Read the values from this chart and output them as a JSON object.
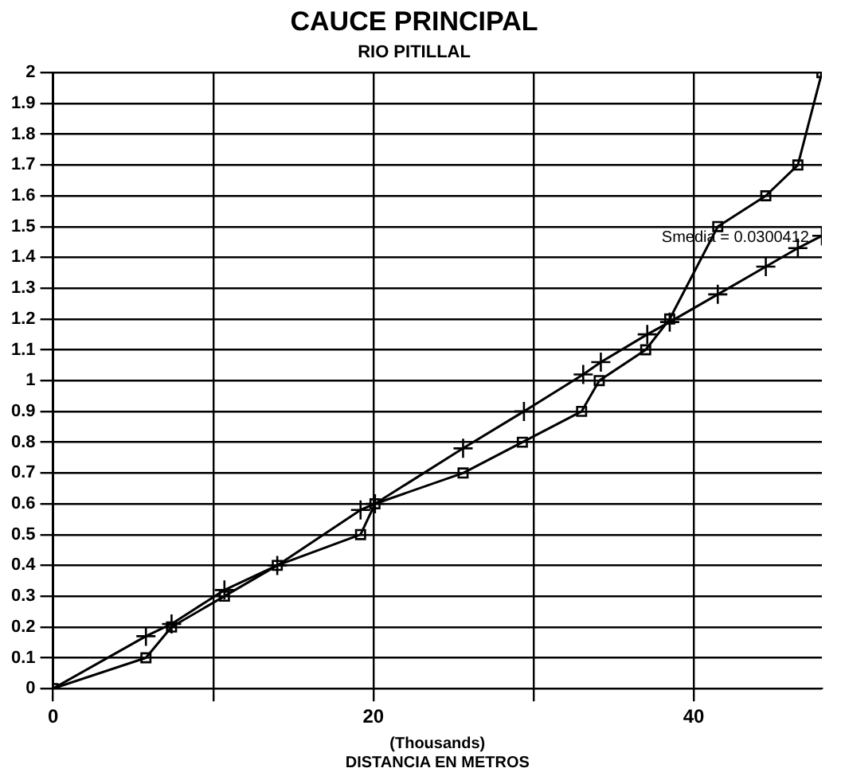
{
  "chart_data": {
    "type": "line",
    "title": "CAUCE PRINCIPAL",
    "subtitle": "RIO PITILLAL",
    "xlabel": "(Thousands)\nDISTANCIA EN METROS",
    "xlim": [
      0,
      48
    ],
    "xticks": [
      0,
      {
        "value": 10,
        "label": null
      },
      20,
      {
        "value": 30,
        "label": null
      },
      40
    ],
    "ylim": [
      0,
      2
    ],
    "yticks": [
      0,
      0.1,
      0.2,
      0.3,
      0.4,
      0.5,
      0.6,
      0.7,
      0.8,
      0.9,
      1,
      1.1,
      1.2,
      1.3,
      1.4,
      1.5,
      1.6,
      1.7,
      1.8,
      1.9,
      2
    ],
    "grid": true,
    "legend": false,
    "line_style": "solid",
    "annotations": [
      {
        "text": "Smedia = 0.0300412",
        "x": 48,
        "y": 1.47
      }
    ],
    "series": [
      {
        "color": "#000000",
        "marker": "square",
        "x": [
          0,
          5.8,
          7.4,
          10.7,
          14.0,
          19.2,
          20.1,
          25.6,
          29.3,
          33.0,
          34.1,
          37.0,
          38.5,
          41.5,
          44.5,
          46.5,
          48
        ],
        "values": [
          0,
          0.1,
          0.2,
          0.3,
          0.4,
          0.5,
          0.6,
          0.7,
          0.8,
          0.9,
          1.0,
          1.1,
          1.2,
          1.5,
          1.6,
          1.7,
          2.0
        ]
      },
      {
        "color": "#000000",
        "marker": "cross",
        "x": [
          0,
          5.8,
          7.4,
          10.7,
          14.0,
          19.2,
          20.1,
          25.6,
          29.4,
          33.1,
          34.2,
          37.1,
          38.5,
          41.5,
          44.5,
          46.5,
          48
        ],
        "values": [
          0,
          0.17,
          0.21,
          0.32,
          0.4,
          0.58,
          0.6,
          0.78,
          0.9,
          1.02,
          1.06,
          1.15,
          1.19,
          1.28,
          1.37,
          1.43,
          1.47
        ]
      }
    ]
  }
}
